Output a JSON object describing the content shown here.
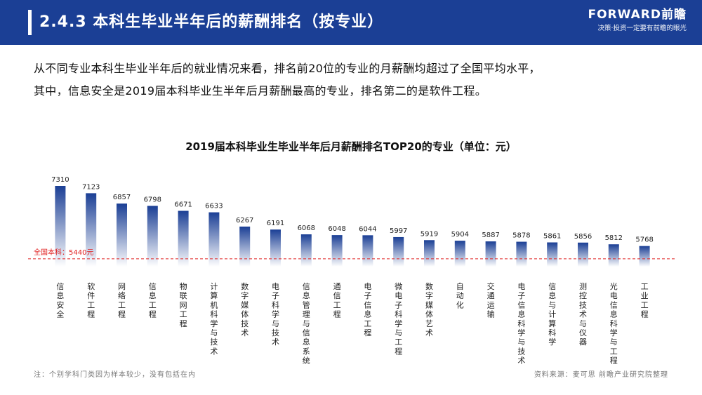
{
  "header": {
    "title": "2.4.3 本科生毕业半年后的薪酬排名（按专业）",
    "brand_name": "FORWARD前瞻",
    "brand_slogan": "决策·投资一定要有前瞻的眼光"
  },
  "intro": {
    "line1": "从不同专业本科生毕业半年后的就业情况来看，排名前20位的专业的月薪酬均超过了全国平均水平，",
    "line2": "其中，信息安全是2019届本科毕业生半年后月薪酬最高的专业，排名第二的是软件工程。"
  },
  "chart_data": {
    "type": "bar",
    "title": "2019届本科毕业生毕业半年后月薪酬排名TOP20的专业（单位：元）",
    "categories": [
      "信息安全",
      "软件工程",
      "网络工程",
      "信息工程",
      "物联网工程",
      "计算机科学与技术",
      "数字媒体技术",
      "电子科学与技术",
      "信息管理与信息系统",
      "通信工程",
      "电子信息工程",
      "微电子科学与工程",
      "数字媒体艺术",
      "自动化",
      "交通运输",
      "电子信息科学与技术",
      "信息与计算科学",
      "测控技术与仪器",
      "光电信息科学与工程",
      "工业工程"
    ],
    "values": [
      7310,
      7123,
      6857,
      6798,
      6671,
      6633,
      6267,
      6191,
      6068,
      6048,
      6044,
      5997,
      5919,
      5904,
      5887,
      5878,
      5861,
      5856,
      5812,
      5768
    ],
    "reference_line": {
      "label": "全国本科：5440元",
      "value": 5440
    },
    "bar_color": "#1b3f95",
    "reference_color": "#e02020"
  },
  "footnote": "注：个别学科门类因为样本较少，没有包括在内",
  "source": "资料来源：麦可思  前瞻产业研究院整理"
}
